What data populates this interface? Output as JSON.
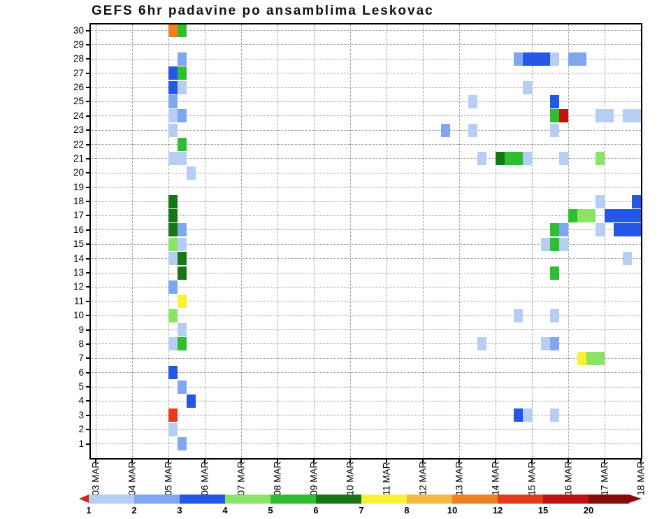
{
  "title": "GEFS 6hr padavine po ansamblima Leskovac",
  "chart_data": {
    "type": "heatmap",
    "title": "GEFS 6hr padavine po ansamblima Leskovac",
    "x_axis": {
      "tick_labels": [
        "03 MAR",
        "04 MAR",
        "05 MAR",
        "06 MAR",
        "07 MAR",
        "08 MAR",
        "09 MAR",
        "10 MAR",
        "11 MAR",
        "12 MAR",
        "13 MAR",
        "14 MAR",
        "15 MAR",
        "16 MAR",
        "17 MAR",
        "18 MAR"
      ],
      "steps_per_day": 4,
      "step_hours": 6
    },
    "y_axis": {
      "description": "ensemble member",
      "min": 1,
      "max": 30
    },
    "grid": true,
    "legend": {
      "levels": [
        "1",
        "2",
        "3",
        "4",
        "5",
        "6",
        "7",
        "8",
        "10",
        "12",
        "15",
        "20"
      ],
      "range_labels": [
        "1-2",
        "2-3",
        "3-4",
        "4-5",
        "5-6",
        "6-7",
        "7-8",
        "8-10",
        "10-12",
        "12-15",
        "15-20",
        ">20"
      ],
      "colors": [
        "#b6cdf4",
        "#7fa6ee",
        "#2457e6",
        "#8be466",
        "#2fbe2f",
        "#177717",
        "#f8f032",
        "#f4b83a",
        "#f08122",
        "#e63a1c",
        "#c31212",
        "#8a0a0a"
      ],
      "left_arrow_color": "#d02818",
      "position": "bottom"
    },
    "cells_format": "[six_hour_step_index_from_03MAR_00h, ensemble_member, color_level_index]",
    "cells": [
      [
        8,
        30,
        8
      ],
      [
        9,
        30,
        4
      ],
      [
        9,
        28,
        1
      ],
      [
        8,
        27,
        2
      ],
      [
        9,
        27,
        4
      ],
      [
        8,
        26,
        2
      ],
      [
        9,
        26,
        0
      ],
      [
        8,
        25,
        1
      ],
      [
        8,
        24,
        0
      ],
      [
        9,
        24,
        1
      ],
      [
        8,
        23,
        0
      ],
      [
        9,
        22,
        4
      ],
      [
        8,
        21,
        0
      ],
      [
        9,
        21,
        0
      ],
      [
        10,
        20,
        0
      ],
      [
        8,
        18,
        5
      ],
      [
        8,
        17,
        5
      ],
      [
        8,
        16,
        5
      ],
      [
        9,
        16,
        1
      ],
      [
        8,
        15,
        3
      ],
      [
        9,
        15,
        0
      ],
      [
        8,
        14,
        0
      ],
      [
        9,
        14,
        5
      ],
      [
        9,
        13,
        5
      ],
      [
        8,
        12,
        1
      ],
      [
        9,
        11,
        6
      ],
      [
        8,
        10,
        3
      ],
      [
        9,
        9,
        0
      ],
      [
        8,
        8,
        0
      ],
      [
        9,
        8,
        4
      ],
      [
        8,
        6,
        2
      ],
      [
        9,
        5,
        1
      ],
      [
        10,
        4,
        2
      ],
      [
        8,
        3,
        9
      ],
      [
        8,
        2,
        0
      ],
      [
        9,
        1,
        1
      ],
      [
        46,
        28,
        1
      ],
      [
        47,
        28,
        2
      ],
      [
        48,
        28,
        2
      ],
      [
        49,
        28,
        2
      ],
      [
        50,
        28,
        0
      ],
      [
        52,
        28,
        1
      ],
      [
        53,
        28,
        1
      ],
      [
        47,
        26,
        0
      ],
      [
        41,
        25,
        0
      ],
      [
        50,
        25,
        2
      ],
      [
        50,
        24,
        4
      ],
      [
        51,
        24,
        10
      ],
      [
        55,
        24,
        0
      ],
      [
        56,
        24,
        0
      ],
      [
        58,
        24,
        0
      ],
      [
        59,
        24,
        0
      ],
      [
        38,
        23,
        1
      ],
      [
        41,
        23,
        0
      ],
      [
        50,
        23,
        0
      ],
      [
        42,
        21,
        0
      ],
      [
        44,
        21,
        5
      ],
      [
        45,
        21,
        4
      ],
      [
        46,
        21,
        4
      ],
      [
        47,
        21,
        0
      ],
      [
        51,
        21,
        0
      ],
      [
        55,
        21,
        3
      ],
      [
        55,
        18,
        0
      ],
      [
        59,
        18,
        2
      ],
      [
        52,
        17,
        4
      ],
      [
        53,
        17,
        3
      ],
      [
        54,
        17,
        3
      ],
      [
        56,
        17,
        2
      ],
      [
        57,
        17,
        2
      ],
      [
        58,
        17,
        2
      ],
      [
        59,
        17,
        2
      ],
      [
        50,
        16,
        4
      ],
      [
        51,
        16,
        1
      ],
      [
        55,
        16,
        0
      ],
      [
        57,
        16,
        2
      ],
      [
        58,
        16,
        2
      ],
      [
        59,
        16,
        2
      ],
      [
        49,
        15,
        0
      ],
      [
        50,
        15,
        4
      ],
      [
        51,
        15,
        0
      ],
      [
        58,
        14,
        0
      ],
      [
        50,
        13,
        4
      ],
      [
        46,
        10,
        0
      ],
      [
        50,
        10,
        0
      ],
      [
        42,
        8,
        0
      ],
      [
        49,
        8,
        0
      ],
      [
        50,
        8,
        1
      ],
      [
        53,
        7,
        6
      ],
      [
        54,
        7,
        3
      ],
      [
        55,
        7,
        3
      ],
      [
        46,
        3,
        2
      ],
      [
        47,
        3,
        0
      ],
      [
        50,
        3,
        0
      ]
    ]
  }
}
